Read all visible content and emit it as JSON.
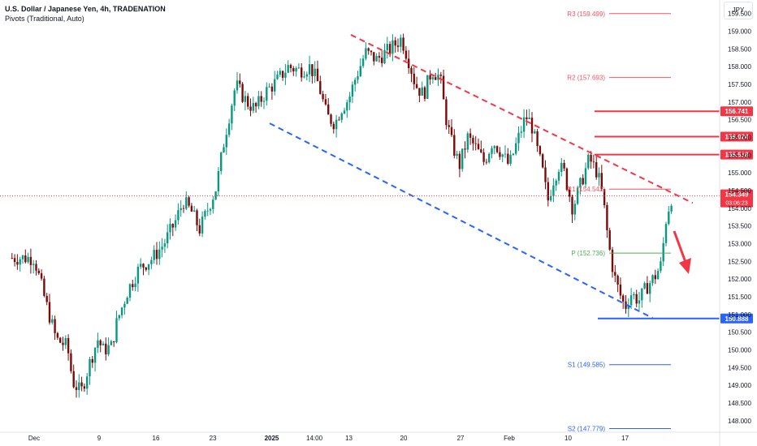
{
  "header": {
    "title": "U.S. Dollar / Japanese Yen, 4h, TRADENATION",
    "subtitle": "Pivots (Traditional, Auto)",
    "currency": "JPY"
  },
  "colors": {
    "up": "#089981",
    "down": "#7a0b0b",
    "wick": "#131722",
    "red_line": "#f23645",
    "blue_line": "#2962ff",
    "pivot_red": "#f7525f",
    "pivot_green": "#4caf50",
    "pivot_blue": "#2962ff"
  },
  "chart_data": {
    "type": "candlestick",
    "symbol": "USDJPY",
    "timeframe": "4h",
    "y_axis": {
      "ylim": [
        147.7,
        159.7
      ],
      "ticks": [
        "159.500",
        "159.000",
        "158.500",
        "158.000",
        "157.500",
        "157.000",
        "156.500",
        "156.000",
        "155.500",
        "155.000",
        "154.500",
        "154.000",
        "153.500",
        "153.000",
        "152.500",
        "152.000",
        "151.500",
        "151.000",
        "150.500",
        "150.000",
        "149.500",
        "149.000",
        "148.500",
        "148.000"
      ]
    },
    "x_axis": {
      "labels": [
        {
          "label": "Dec",
          "pos": 0.0
        },
        {
          "label": "9",
          "pos": 0.1176
        },
        {
          "label": "16",
          "pos": 0.2206
        },
        {
          "label": "23",
          "pos": 0.3236
        },
        {
          "label": "2025",
          "pos": 0.4301
        },
        {
          "label": "14:00",
          "pos": 0.5074
        },
        {
          "label": "13",
          "pos": 0.5699
        },
        {
          "label": "20",
          "pos": 0.6691
        },
        {
          "label": "27",
          "pos": 0.7721
        },
        {
          "label": "Feb",
          "pos": 0.8603
        },
        {
          "label": "10",
          "pos": 0.9669
        },
        {
          "label": "17",
          "pos": 1.07
        }
      ]
    },
    "path": [
      [
        0.0,
        152.6
      ],
      [
        0.02,
        151.4
      ],
      [
        0.04,
        150.3
      ],
      [
        0.06,
        150.1
      ],
      [
        0.07,
        149.1
      ],
      [
        0.085,
        148.8
      ],
      [
        0.1,
        149.6
      ],
      [
        0.115,
        150.3
      ],
      [
        0.125,
        150.0
      ],
      [
        0.14,
        150.1
      ],
      [
        0.15,
        150.8
      ],
      [
        0.17,
        151.7
      ],
      [
        0.19,
        152.3
      ],
      [
        0.215,
        152.6
      ],
      [
        0.235,
        153.0
      ],
      [
        0.255,
        153.6
      ],
      [
        0.27,
        154.2
      ],
      [
        0.285,
        153.9
      ],
      [
        0.3,
        153.4
      ],
      [
        0.31,
        153.8
      ],
      [
        0.33,
        154.6
      ],
      [
        0.345,
        156.0
      ],
      [
        0.365,
        157.5
      ],
      [
        0.385,
        157.0
      ],
      [
        0.4,
        156.8
      ],
      [
        0.42,
        157.3
      ],
      [
        0.44,
        157.6
      ],
      [
        0.46,
        158.0
      ],
      [
        0.48,
        157.9
      ],
      [
        0.5,
        158.0
      ],
      [
        0.515,
        157.5
      ],
      [
        0.53,
        156.6
      ],
      [
        0.545,
        156.4
      ],
      [
        0.555,
        156.8
      ],
      [
        0.57,
        157.1
      ],
      [
        0.58,
        157.6
      ],
      [
        0.6,
        158.4
      ],
      [
        0.62,
        158.2
      ],
      [
        0.645,
        158.5
      ],
      [
        0.665,
        158.8
      ],
      [
        0.68,
        158.1
      ],
      [
        0.69,
        157.5
      ],
      [
        0.705,
        157.2
      ],
      [
        0.72,
        157.9
      ],
      [
        0.735,
        157.7
      ],
      [
        0.745,
        156.6
      ],
      [
        0.755,
        155.9
      ],
      [
        0.77,
        155.2
      ],
      [
        0.785,
        156.0
      ],
      [
        0.8,
        155.7
      ],
      [
        0.815,
        155.3
      ],
      [
        0.83,
        155.9
      ],
      [
        0.845,
        155.6
      ],
      [
        0.86,
        155.2
      ],
      [
        0.875,
        155.9
      ],
      [
        0.89,
        156.6
      ],
      [
        0.9,
        156.4
      ],
      [
        0.91,
        155.7
      ],
      [
        0.92,
        155.1
      ],
      [
        0.93,
        154.2
      ],
      [
        0.94,
        154.8
      ],
      [
        0.95,
        155.2
      ],
      [
        0.96,
        155.0
      ],
      [
        0.975,
        154.0
      ],
      [
        0.99,
        154.7
      ],
      [
        1.005,
        155.4
      ],
      [
        1.02,
        155.0
      ],
      [
        1.03,
        154.3
      ],
      [
        1.04,
        153.0
      ],
      [
        1.05,
        152.1
      ],
      [
        1.06,
        151.6
      ],
      [
        1.07,
        151.2
      ],
      [
        1.08,
        151.6
      ],
      [
        1.095,
        151.4
      ],
      [
        1.11,
        151.8
      ],
      [
        1.125,
        152.1
      ],
      [
        1.135,
        152.4
      ],
      [
        1.145,
        153.8
      ],
      [
        1.155,
        154.35
      ],
      [
        1.16,
        154.35
      ]
    ],
    "x_domain": [
      -0.04,
      1.155
    ],
    "annotations": {
      "resistance_lines": [
        {
          "label": "156.741",
          "value": 156.741
        },
        {
          "label": "156.024",
          "value": 156.024
        },
        {
          "label": "155.518",
          "value": 155.518
        }
      ],
      "support_line": {
        "label": "150.888",
        "value": 150.888
      },
      "pivots": [
        {
          "label": "R3 (159.499)",
          "value": 159.499,
          "tone": "red"
        },
        {
          "label": "R2 (157.693)",
          "value": 157.693,
          "tone": "red"
        },
        {
          "label": "R1 (154.542)",
          "value": 154.542,
          "tone": "red"
        },
        {
          "label": "P (152.736)",
          "value": 152.736,
          "tone": "green"
        },
        {
          "label": "S1 (149.585)",
          "value": 149.585,
          "tone": "blue"
        },
        {
          "label": "S2 (147.779)",
          "value": 147.779,
          "tone": "blue"
        }
      ],
      "current_price": {
        "label": "154.349",
        "value": 154.349,
        "countdown": "03:06:23"
      },
      "channel": {
        "upper": [
          [
            0.5735,
            158.9
          ],
          [
            1.1925,
            154.15
          ]
        ],
        "lower": [
          [
            0.4265,
            156.4
          ],
          [
            1.12,
            150.9
          ]
        ]
      }
    }
  }
}
